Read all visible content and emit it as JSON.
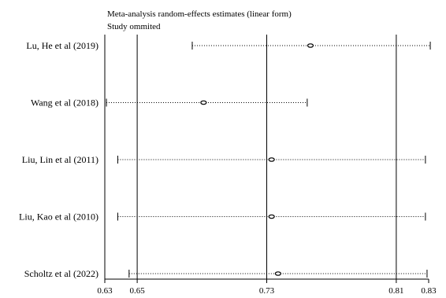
{
  "chart_data": {
    "type": "scatter",
    "title": "Meta-analysis random-effects estimates (linear form)",
    "subtitle": "Study ommited",
    "xlabel": "",
    "ylabel": "",
    "xlim": [
      0.63,
      0.83
    ],
    "x_ticks": [
      "0.63",
      "0.65",
      "0.73",
      "0.81",
      "0.83"
    ],
    "reference_lines": [
      0.65,
      0.73,
      0.81
    ],
    "grid": false,
    "legend": "none",
    "studies": [
      {
        "label": "Lu, He et al (2019)",
        "estimate": 0.757,
        "ci_lower": 0.684,
        "ci_upper": 0.831
      },
      {
        "label": "Wang et al (2018)",
        "estimate": 0.691,
        "ci_lower": 0.631,
        "ci_upper": 0.755
      },
      {
        "label": "Liu, Lin et al (2011)",
        "estimate": 0.733,
        "ci_lower": 0.638,
        "ci_upper": 0.828
      },
      {
        "label": "Liu, Kao et al (2010)",
        "estimate": 0.733,
        "ci_lower": 0.638,
        "ci_upper": 0.828
      },
      {
        "label": "Scholtz et al (2022)",
        "estimate": 0.737,
        "ci_lower": 0.645,
        "ci_upper": 0.829
      }
    ]
  }
}
